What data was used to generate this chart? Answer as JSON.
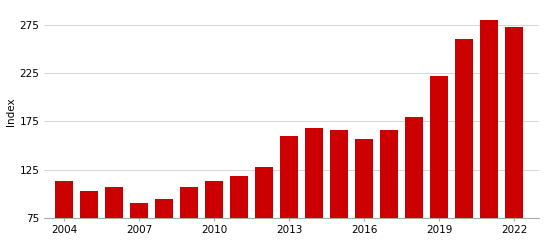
{
  "years": [
    2004,
    2005,
    2006,
    2007,
    2008,
    2009,
    2010,
    2011,
    2012,
    2013,
    2014,
    2015,
    2016,
    2017,
    2018,
    2019,
    2020,
    2021,
    2022
  ],
  "values": [
    113,
    103,
    107,
    90,
    95,
    107,
    113,
    118,
    128,
    160,
    168,
    166,
    157,
    166,
    179,
    222,
    260,
    280,
    273
  ],
  "bar_color": "#cc0000",
  "ylabel": "Index",
  "ylim": [
    75,
    295
  ],
  "yticks": [
    75,
    125,
    175,
    225,
    275
  ],
  "xticks": [
    2004,
    2007,
    2010,
    2013,
    2016,
    2019,
    2022
  ],
  "grid_color": "#d0d0d0",
  "background_color": "#ffffff",
  "bar_width": 0.72
}
